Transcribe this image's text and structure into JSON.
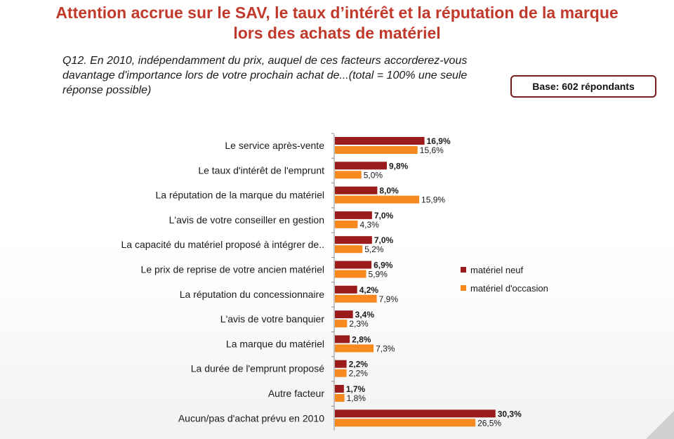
{
  "title": {
    "line1": "Attention accrue sur le SAV, le taux d’intérêt et la réputation de la marque",
    "line2": "lors des achats de matériel"
  },
  "question": {
    "line1": "Q12. En 2010, indépendamment du prix, auquel de ces facteurs accorderez-vous",
    "line2": "davantage d'importance lors de votre prochain achat de...(total = 100% une seule",
    "line3": "réponse possible)"
  },
  "base_label": "Base: 602 répondants",
  "colors": {
    "neuf": "#9b1b1b",
    "occasion": "#f7891f",
    "title": "#c0392b",
    "base_border": "#7b1c1c"
  },
  "chart_data": {
    "type": "bar",
    "orientation": "horizontal",
    "categories": [
      "Le service après-vente",
      "Le taux d'intérêt de l'emprunt",
      "La réputation de la marque du matériel",
      "L'avis de votre conseiller en gestion",
      "La capacité du matériel proposé à intégrer de..",
      "Le prix de reprise de votre ancien matériel",
      "La réputation du concessionnaire",
      "L'avis de votre banquier",
      "La marque du matériel",
      "La durée de l'emprunt proposé",
      "Autre facteur",
      "Aucun/pas d'achat prévu en 2010"
    ],
    "series": [
      {
        "name": "matériel neuf",
        "values": [
          16.9,
          9.8,
          8.0,
          7.0,
          7.0,
          6.9,
          4.2,
          3.4,
          2.8,
          2.2,
          1.7,
          30.3
        ],
        "labels": [
          "16,9%",
          "9,8%",
          "8,0%",
          "7,0%",
          "7,0%",
          "6,9%",
          "4,2%",
          "3,4%",
          "2,8%",
          "2,2%",
          "1,7%",
          "30,3%"
        ]
      },
      {
        "name": "matériel d'occasion",
        "values": [
          15.6,
          5.0,
          15.9,
          4.3,
          5.2,
          5.9,
          7.9,
          2.3,
          7.3,
          2.2,
          1.8,
          26.5
        ],
        "labels": [
          "15,6%",
          "5,0%",
          "15,9%",
          "4,3%",
          "5,2%",
          "5,9%",
          "7,9%",
          "2,3%",
          "7,3%",
          "2,2%",
          "1,8%",
          "26,5%"
        ]
      }
    ],
    "unit": "%",
    "xlim": [
      0,
      35
    ],
    "grid": false,
    "legend": "right"
  }
}
